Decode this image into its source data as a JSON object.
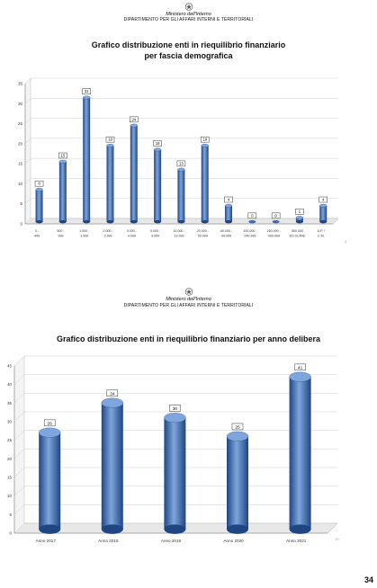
{
  "header": {
    "ministry": "Ministero dell'Interno",
    "department": "DIPARTIMENTO PER GLI AFFARI INTERNI E TERRITORIALI"
  },
  "slide1": {
    "title_line1": "Grafico distribuzione enti in riequilibrio finanziario",
    "title_line2": "per fascia demografica",
    "slide_number": "3"
  },
  "slide2": {
    "title": "Grafico distribuzione enti in riequilibrio finanziario per anno delibera",
    "slide_number": "10"
  },
  "page_number": "34",
  "colors": {
    "bar": "#3a6fb8",
    "bar_dark": "#1f4683",
    "bar_light": "#7ea6dc",
    "grid": "#cfcfcf"
  },
  "chart_data": [
    {
      "type": "bar",
      "title": "Grafico distribuzione enti in riequilibrio finanziario per fascia demografica",
      "categories": [
        [
          "0 -",
          "499"
        ],
        [
          "500 -",
          "999"
        ],
        [
          "1.000 -",
          "1.999"
        ],
        [
          "2.000 -",
          "2.999"
        ],
        [
          "3.000 -",
          "4.999"
        ],
        [
          "5.000 -",
          "9.999"
        ],
        [
          "10.000 -",
          "19.999"
        ],
        [
          "20.000 -",
          "59.999"
        ],
        [
          "60.000 -",
          "99.999"
        ],
        [
          "100.000 -",
          "249.999"
        ],
        [
          "250.000 -",
          "499.999"
        ],
        [
          "500.000",
          "ED OLTRE"
        ],
        [
          "A.P. /",
          "C.M."
        ]
      ],
      "values": [
        8,
        15,
        31,
        19,
        24,
        18,
        13,
        19,
        4,
        0,
        0,
        1,
        4
      ],
      "yticks": [
        0,
        5,
        10,
        15,
        20,
        25,
        30,
        35
      ],
      "ylim": [
        0,
        35
      ],
      "grid": true,
      "data_labels": true
    },
    {
      "type": "bar",
      "title": "Grafico distribuzione enti in riequilibrio finanziario per anno delibera",
      "categories": [
        "Anno 2017",
        "Anno 2018",
        "Anno 2019",
        "Anno 2020",
        "Anno 2021"
      ],
      "values": [
        26,
        34,
        30,
        25,
        41
      ],
      "yticks": [
        0,
        5,
        10,
        15,
        20,
        25,
        30,
        35,
        40,
        45
      ],
      "ylim": [
        0,
        45
      ],
      "grid": true,
      "data_labels": true
    }
  ]
}
